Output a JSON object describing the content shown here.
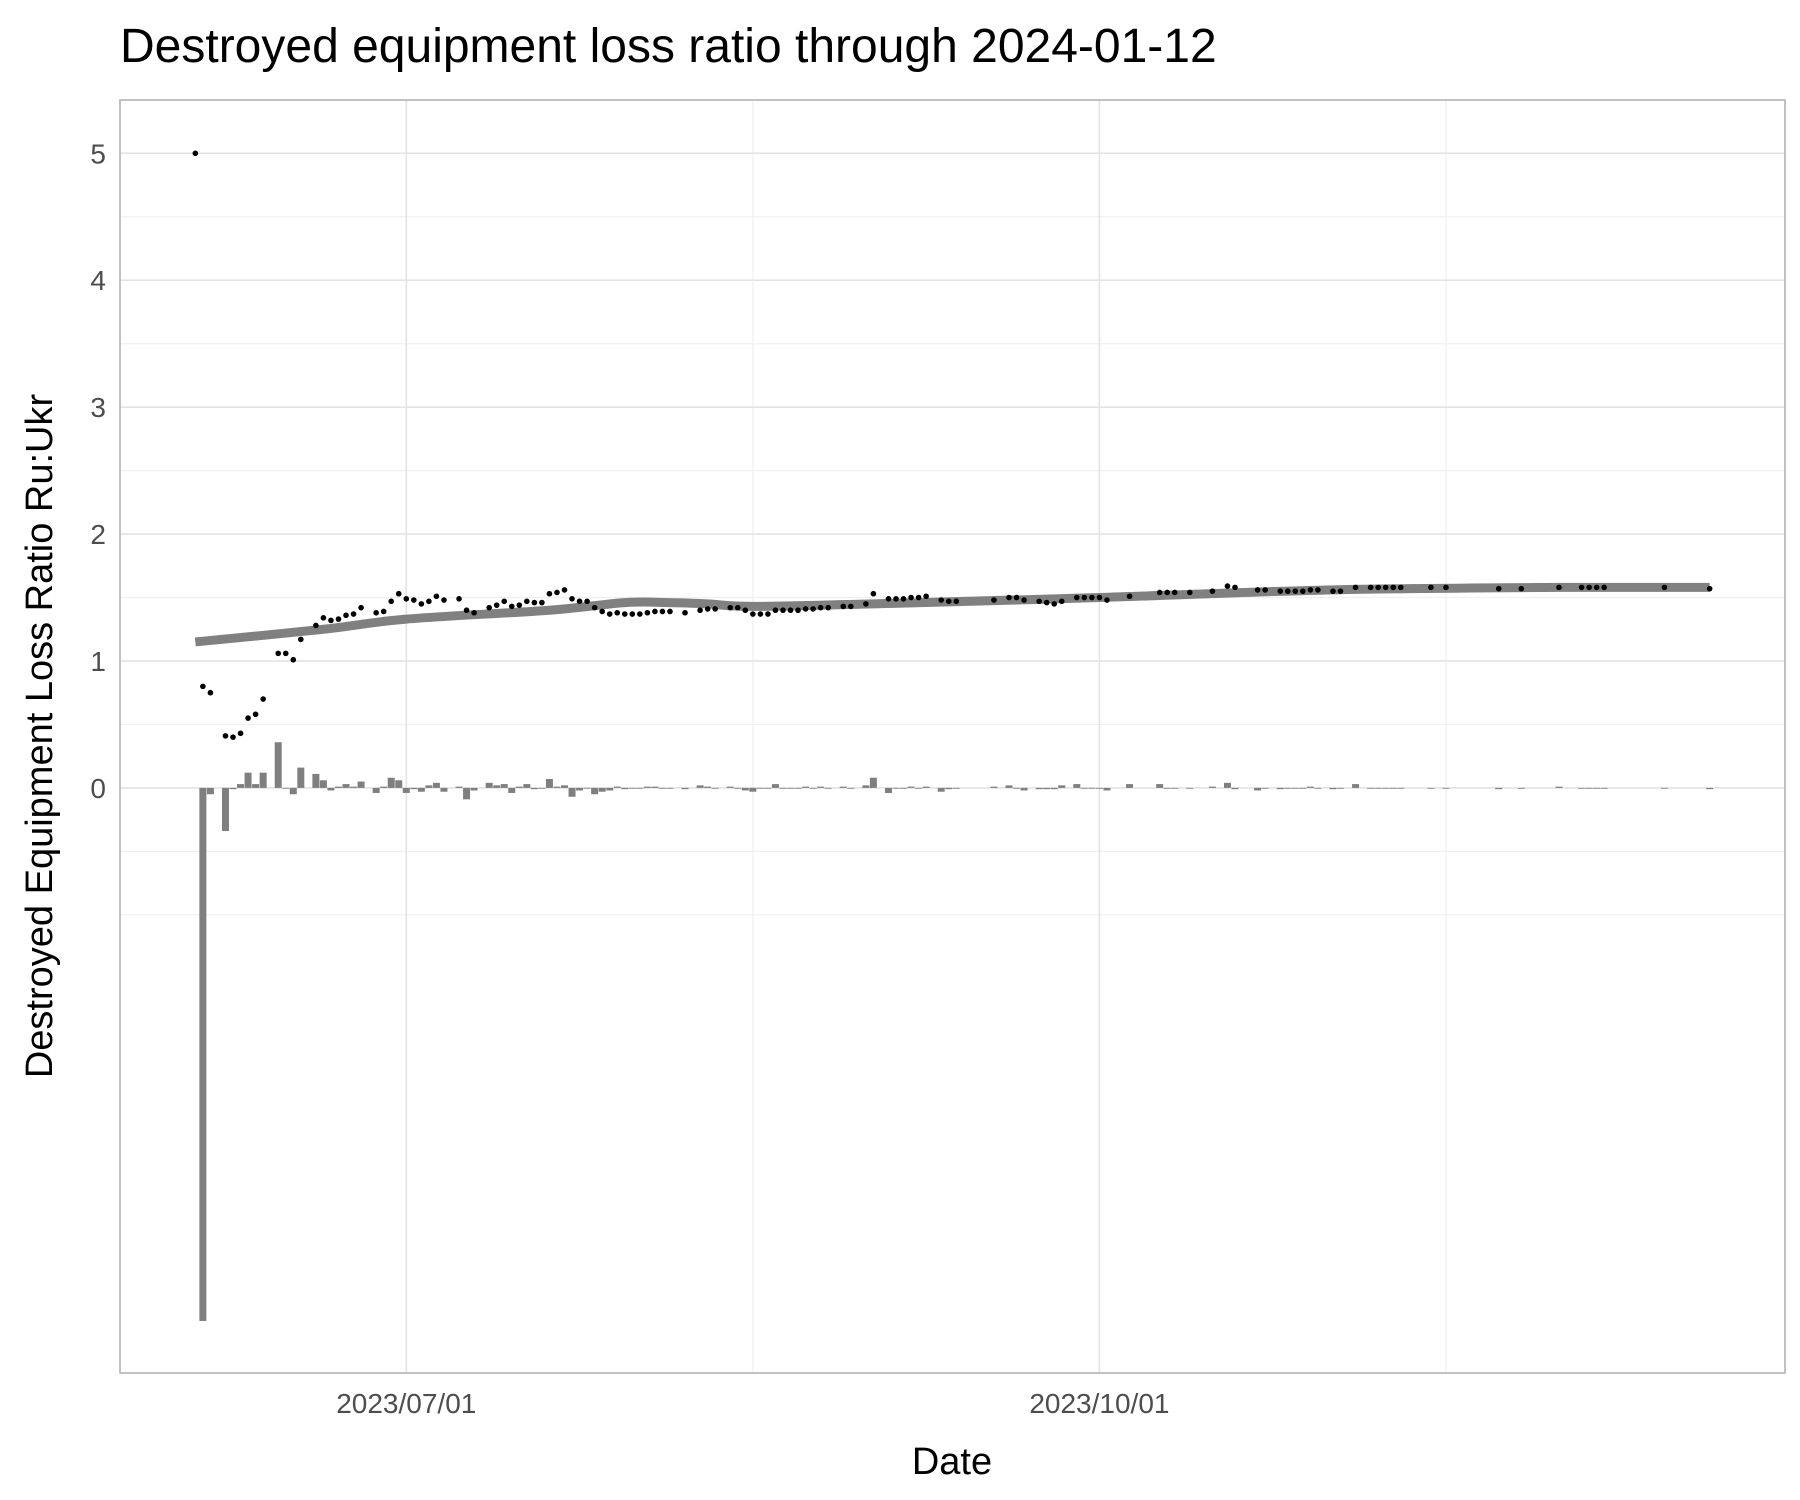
{
  "chart_data": {
    "type": "scatter",
    "title": "Destroyed equipment loss ratio through 2024-01-12",
    "x_label": "Date",
    "y_label": "Destroyed Equipment Loss Ratio Ru:Ukr",
    "xlim": [
      "2023-05-24",
      "2023-12-31"
    ],
    "xticks": [
      {
        "value": "2023-07-01",
        "label": "2023/07/01"
      },
      {
        "value": "2023-10-01",
        "label": "2023/10/01"
      }
    ],
    "xminor": [
      "2023-08-16",
      "2023-11-16"
    ],
    "ylim": [
      -4.61,
      5.42
    ],
    "yticks": [
      0,
      1,
      2,
      3,
      4,
      5
    ],
    "yminor": [
      -1,
      -0.5,
      0.5,
      1.5,
      2.5,
      3.5,
      4.5
    ],
    "grid": true,
    "x": [
      "2023-06-03",
      "2023-06-04",
      "2023-06-05",
      "2023-06-07",
      "2023-06-08",
      "2023-06-09",
      "2023-06-10",
      "2023-06-11",
      "2023-06-12",
      "2023-06-14",
      "2023-06-15",
      "2023-06-16",
      "2023-06-17",
      "2023-06-19",
      "2023-06-20",
      "2023-06-21",
      "2023-06-22",
      "2023-06-23",
      "2023-06-24",
      "2023-06-25",
      "2023-06-27",
      "2023-06-28",
      "2023-06-29",
      "2023-06-30",
      "2023-07-01",
      "2023-07-02",
      "2023-07-03",
      "2023-07-04",
      "2023-07-05",
      "2023-07-06",
      "2023-07-08",
      "2023-07-09",
      "2023-07-10",
      "2023-07-12",
      "2023-07-13",
      "2023-07-14",
      "2023-07-15",
      "2023-07-16",
      "2023-07-17",
      "2023-07-18",
      "2023-07-19",
      "2023-07-20",
      "2023-07-21",
      "2023-07-22",
      "2023-07-23",
      "2023-07-24",
      "2023-07-25",
      "2023-07-26",
      "2023-07-27",
      "2023-07-28",
      "2023-07-29",
      "2023-07-30",
      "2023-07-31",
      "2023-08-01",
      "2023-08-02",
      "2023-08-03",
      "2023-08-04",
      "2023-08-05",
      "2023-08-07",
      "2023-08-09",
      "2023-08-10",
      "2023-08-11",
      "2023-08-13",
      "2023-08-14",
      "2023-08-15",
      "2023-08-16",
      "2023-08-17",
      "2023-08-18",
      "2023-08-19",
      "2023-08-20",
      "2023-08-21",
      "2023-08-22",
      "2023-08-23",
      "2023-08-24",
      "2023-08-25",
      "2023-08-26",
      "2023-08-28",
      "2023-08-29",
      "2023-08-31",
      "2023-09-01",
      "2023-09-03",
      "2023-09-04",
      "2023-09-05",
      "2023-09-06",
      "2023-09-07",
      "2023-09-08",
      "2023-09-10",
      "2023-09-11",
      "2023-09-12",
      "2023-09-17",
      "2023-09-19",
      "2023-09-20",
      "2023-09-21",
      "2023-09-23",
      "2023-09-24",
      "2023-09-25",
      "2023-09-26",
      "2023-09-28",
      "2023-09-29",
      "2023-09-30",
      "2023-10-01",
      "2023-10-02",
      "2023-10-05",
      "2023-10-09",
      "2023-10-10",
      "2023-10-11",
      "2023-10-13",
      "2023-10-16",
      "2023-10-18",
      "2023-10-19",
      "2023-10-22",
      "2023-10-23",
      "2023-10-25",
      "2023-10-26",
      "2023-10-27",
      "2023-10-28",
      "2023-10-29",
      "2023-10-30",
      "2023-11-01",
      "2023-11-02",
      "2023-11-04",
      "2023-11-06",
      "2023-11-07",
      "2023-11-08",
      "2023-11-09",
      "2023-11-10",
      "2023-11-14",
      "2023-11-16",
      "2023-11-23",
      "2023-11-26",
      "2023-12-01",
      "2023-12-04",
      "2023-12-05",
      "2023-12-06",
      "2023-12-07",
      "2023-12-15",
      "2023-12-21"
    ],
    "series": [
      {
        "type": "point",
        "color": "#000000",
        "values": [
          5.0,
          0.8,
          0.75,
          0.41,
          0.4,
          0.43,
          0.55,
          0.58,
          0.7,
          1.06,
          1.06,
          1.01,
          1.17,
          1.28,
          1.34,
          1.32,
          1.33,
          1.36,
          1.37,
          1.42,
          1.38,
          1.39,
          1.47,
          1.53,
          1.49,
          1.48,
          1.45,
          1.47,
          1.51,
          1.48,
          1.49,
          1.4,
          1.38,
          1.42,
          1.44,
          1.47,
          1.43,
          1.44,
          1.47,
          1.46,
          1.46,
          1.53,
          1.54,
          1.56,
          1.49,
          1.47,
          1.47,
          1.42,
          1.39,
          1.37,
          1.38,
          1.37,
          1.37,
          1.37,
          1.38,
          1.39,
          1.39,
          1.39,
          1.38,
          1.4,
          1.41,
          1.41,
          1.42,
          1.42,
          1.4,
          1.37,
          1.37,
          1.37,
          1.4,
          1.4,
          1.4,
          1.4,
          1.41,
          1.41,
          1.42,
          1.42,
          1.43,
          1.43,
          1.45,
          1.53,
          1.49,
          1.49,
          1.49,
          1.5,
          1.5,
          1.51,
          1.48,
          1.47,
          1.47,
          1.48,
          1.5,
          1.5,
          1.48,
          1.47,
          1.46,
          1.45,
          1.47,
          1.5,
          1.5,
          1.5,
          1.5,
          1.48,
          1.51,
          1.54,
          1.54,
          1.54,
          1.54,
          1.55,
          1.59,
          1.58,
          1.56,
          1.56,
          1.55,
          1.55,
          1.55,
          1.55,
          1.56,
          1.56,
          1.55,
          1.55,
          1.58,
          1.58,
          1.58,
          1.58,
          1.58,
          1.58,
          1.58,
          1.58,
          1.57,
          1.57,
          1.58,
          1.58,
          1.58,
          1.58,
          1.58,
          1.58,
          1.57
        ]
      },
      {
        "type": "bar",
        "color": "#7f7f7f",
        "values": [
          null,
          -4.2,
          -0.05,
          -0.34,
          -0.01,
          0.03,
          0.12,
          0.03,
          0.12,
          0.36,
          0,
          -0.05,
          0.16,
          0.11,
          0.06,
          -0.02,
          0.01,
          0.03,
          0.01,
          0.05,
          -0.04,
          0.01,
          0.08,
          0.06,
          -0.04,
          -0.01,
          -0.03,
          0.02,
          0.04,
          -0.03,
          0.01,
          -0.09,
          -0.02,
          0.04,
          0.02,
          0.03,
          -0.04,
          0.01,
          0.03,
          -0.01,
          0,
          0.07,
          0.01,
          0.02,
          -0.07,
          -0.02,
          0,
          -0.05,
          -0.03,
          -0.02,
          0.01,
          -0.01,
          0,
          0,
          0.01,
          0.01,
          0,
          0,
          -0.01,
          0.02,
          0.01,
          0,
          0.01,
          0,
          -0.02,
          -0.03,
          0,
          0,
          0.03,
          0,
          0,
          0,
          0.01,
          0,
          0.01,
          0,
          0.01,
          0,
          0.02,
          0.08,
          -0.04,
          0,
          0,
          0.01,
          0,
          0.01,
          -0.03,
          -0.01,
          0,
          0.01,
          0.02,
          0,
          -0.02,
          -0.01,
          -0.01,
          -0.01,
          0.02,
          0.03,
          0,
          0,
          0,
          -0.02,
          0.03,
          0.03,
          0,
          0,
          0,
          0.01,
          0.04,
          -0.01,
          -0.02,
          0,
          -0.01,
          0,
          0,
          0,
          0.01,
          0,
          -0.01,
          0,
          0.03,
          0,
          0,
          0,
          0,
          0,
          0,
          0,
          -0.01,
          0,
          0.01,
          0,
          0,
          0,
          0,
          0,
          -0.01
        ]
      }
    ],
    "smooth": {
      "color": "#808080",
      "x": [
        "2023-06-03",
        "2023-06-20",
        "2023-07-01",
        "2023-07-20",
        "2023-07-30",
        "2023-08-05",
        "2023-08-10",
        "2023-08-16",
        "2023-09-01",
        "2023-10-01",
        "2023-11-01",
        "2023-12-01",
        "2023-12-21"
      ],
      "values": [
        1.15,
        1.25,
        1.33,
        1.4,
        1.46,
        1.46,
        1.45,
        1.43,
        1.45,
        1.5,
        1.56,
        1.58,
        1.58
      ]
    }
  }
}
